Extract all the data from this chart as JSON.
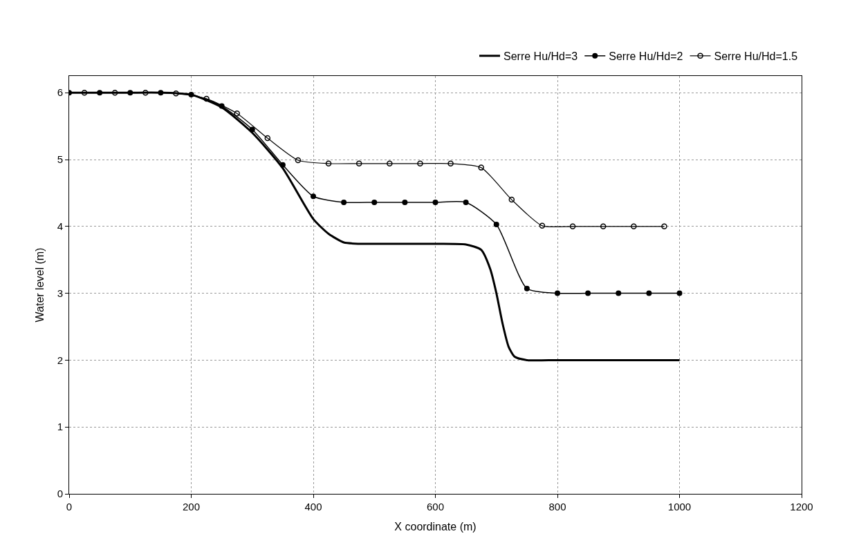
{
  "chart_data": {
    "type": "line",
    "xlabel": "X coordinate (m)",
    "ylabel": "Water level (m)",
    "xlim": [
      0,
      1200
    ],
    "xticks": [
      0,
      200,
      400,
      600,
      800,
      1000,
      1200
    ],
    "ylim": [
      0,
      6.25
    ],
    "yticks": [
      0,
      1,
      2,
      3,
      4,
      5,
      6
    ],
    "grid": true,
    "legend": "top right",
    "line_style": "solid",
    "series": [
      {
        "name": "Serre Hu/Hd=3",
        "color": "#000000",
        "marker": "none",
        "x": [
          0,
          50,
          100,
          150,
          200,
          250,
          300,
          350,
          400,
          425,
          450,
          475,
          500,
          550,
          600,
          650,
          675,
          690,
          700,
          710,
          720,
          730,
          750,
          800,
          900,
          1000
        ],
        "values": [
          6,
          6,
          6,
          6,
          5.97,
          5.78,
          5.4,
          4.87,
          4.11,
          3.89,
          3.76,
          3.74,
          3.74,
          3.74,
          3.74,
          3.73,
          3.65,
          3.36,
          3.0,
          2.55,
          2.2,
          2.05,
          2.0,
          2.0,
          2.0,
          2.0
        ]
      },
      {
        "name": "Serre Hu/Hd=2",
        "color": "#000000",
        "marker": "circle",
        "x": [
          0,
          50,
          100,
          150,
          200,
          250,
          300,
          350,
          400,
          450,
          500,
          550,
          600,
          650,
          700,
          750,
          800,
          850,
          900,
          950,
          1000
        ],
        "values": [
          6,
          6,
          6,
          6,
          5.97,
          5.8,
          5.45,
          4.92,
          4.45,
          4.36,
          4.36,
          4.36,
          4.36,
          4.36,
          4.03,
          3.07,
          3.0,
          3.0,
          3.0,
          3.0,
          3.0
        ]
      },
      {
        "name": "Serre Hu/Hd=1.5",
        "color": "#000000",
        "marker": "circle-open",
        "x": [
          25,
          75,
          125,
          175,
          225,
          275,
          325,
          375,
          425,
          475,
          525,
          575,
          625,
          675,
          725,
          775,
          825,
          875,
          925,
          975
        ],
        "values": [
          6,
          6,
          6,
          5.99,
          5.91,
          5.69,
          5.32,
          4.99,
          4.94,
          4.94,
          4.94,
          4.94,
          4.94,
          4.88,
          4.4,
          4.01,
          4.0,
          4.0,
          4.0,
          4.0
        ]
      }
    ]
  }
}
